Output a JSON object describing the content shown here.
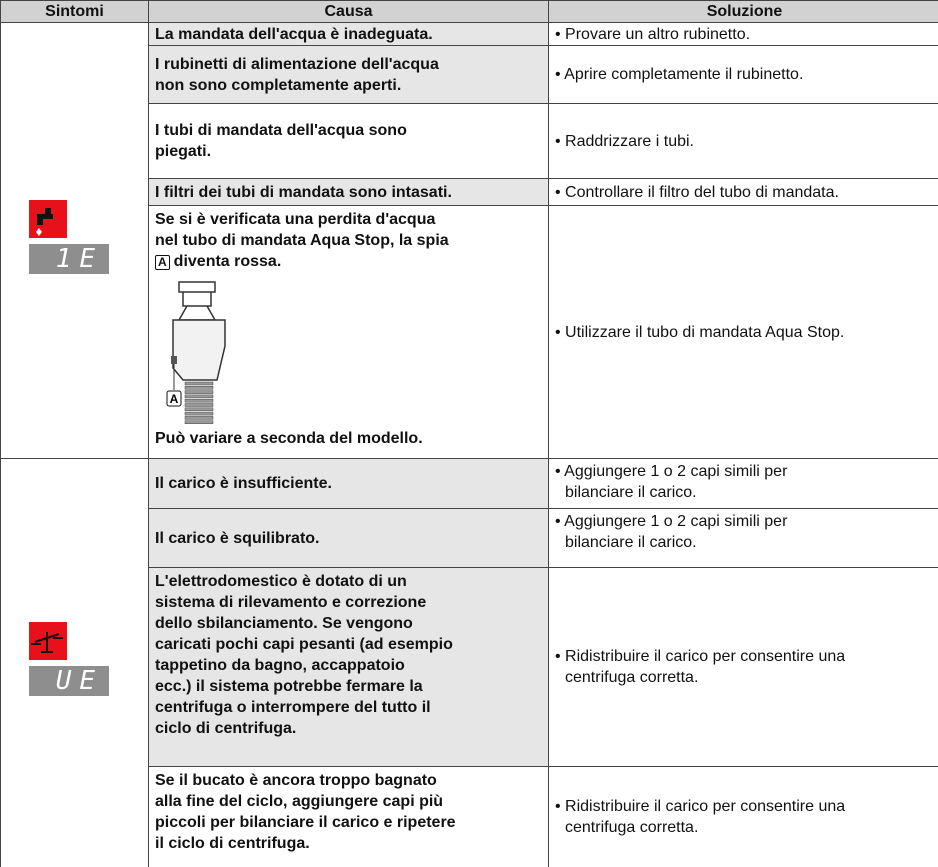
{
  "table": {
    "headers": [
      "Sintomi",
      "Causa",
      "Soluzione"
    ],
    "groups": [
      {
        "display": "1E",
        "rows": [
          {
            "cause": [
              "La mandata dell'acqua è inadeguata."
            ],
            "solution": [
              "• Provare un altro rubinetto."
            ]
          },
          {
            "cause": [
              "I rubinetti di alimentazione dell'acqua",
              "non sono completamente aperti."
            ],
            "solution": [
              "• Aprire completamente il rubinetto."
            ]
          },
          {
            "cause": [
              "I tubi di mandata dell'acqua sono",
              "piegati."
            ],
            "solution": [
              "• Raddrizzare i tubi."
            ]
          },
          {
            "cause": [
              "I filtri dei tubi di mandata sono intasati."
            ],
            "solution": [
              "• Controllare il filtro del tubo di mandata."
            ]
          },
          {
            "cause": [
              "Se si è verificata una perdita d'acqua",
              "nel tubo di mandata Aqua Stop, la spia"
            ],
            "marker": "A",
            "cause_after": "diventa rossa.",
            "figure_label": "A",
            "note": "Può variare a seconda del modello.",
            "solution": [
              "• Utilizzare il tubo di mandata Aqua Stop."
            ]
          }
        ]
      },
      {
        "display": "UE",
        "rows": [
          {
            "cause": [
              "Il carico è insufficiente."
            ],
            "solution": [
              "• Aggiungere 1 o 2 capi simili per",
              "bilanciare il carico."
            ]
          },
          {
            "cause": [
              "Il carico è squilibrato."
            ],
            "solution": [
              "• Aggiungere 1 o 2 capi simili per",
              "bilanciare il carico."
            ]
          },
          {
            "cause": [
              "L'elettrodomestico è dotato di un",
              "sistema di rilevamento e correzione",
              "dello sbilanciamento. Se vengono",
              "caricati pochi capi pesanti (ad esempio",
              "tappetino da bagno, accappatoio",
              "ecc.) il sistema potrebbe fermare la",
              "centrifuga o interrompere del tutto il",
              "ciclo di centrifuga."
            ],
            "solution": [
              "• Ridistribuire il carico per consentire una",
              "centrifuga corretta."
            ]
          },
          {
            "cause": [
              "Se il bucato è ancora troppo bagnato",
              "alla fine del ciclo, aggiungere capi più",
              "piccoli per bilanciare il carico e ripetere",
              "il ciclo di centrifuga."
            ],
            "solution": [
              "• Ridistribuire il carico per consentire una",
              "centrifuga corretta."
            ]
          }
        ]
      }
    ]
  }
}
